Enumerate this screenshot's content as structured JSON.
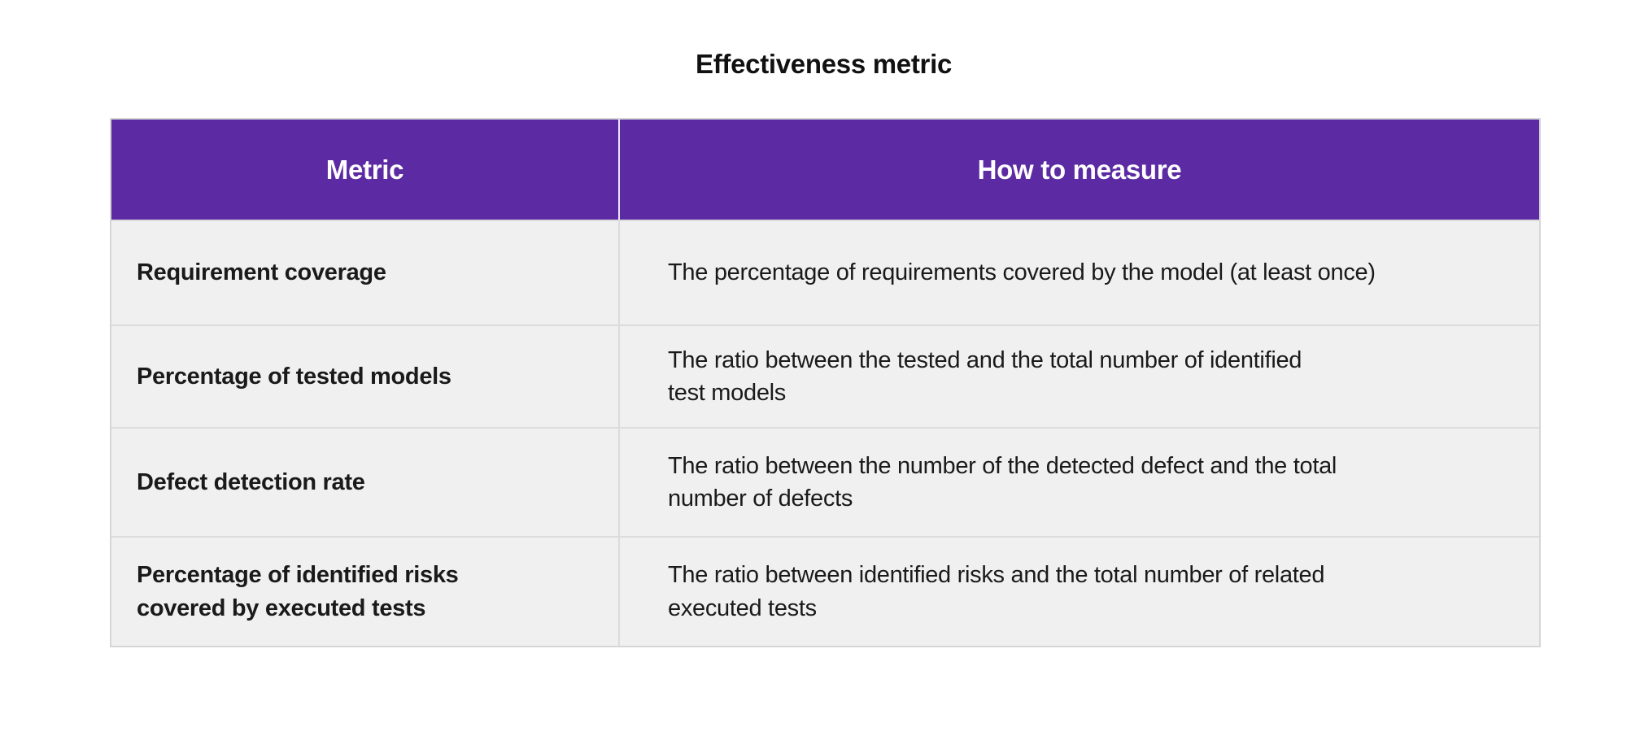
{
  "title": "Effectiveness metric",
  "colors": {
    "header_bg": "#5c2ba3",
    "header_text": "#ffffff",
    "header_divider": "#ece7f4",
    "row_bg": "#f0f0f0",
    "separator": "#dcdcdd",
    "outer_border": "#d6d6d6",
    "body_text": "#1a1a1a"
  },
  "table": {
    "header": {
      "metric": "Metric",
      "how_to_measure": "How to measure"
    },
    "rows": [
      {
        "metric": "Requirement coverage",
        "how": "The percentage of requirements covered by the model (at least once)"
      },
      {
        "metric": "Percentage of tested models",
        "how": "The ratio between the tested and the total number of identified\ntest models"
      },
      {
        "metric": "Defect detection rate",
        "how": "The ratio between the number of the detected defect and the total\nnumber of defects"
      },
      {
        "metric": "Percentage of identified risks\ncovered by executed tests",
        "how": "The ratio between identified risks and the total number of related\nexecuted tests"
      }
    ]
  }
}
